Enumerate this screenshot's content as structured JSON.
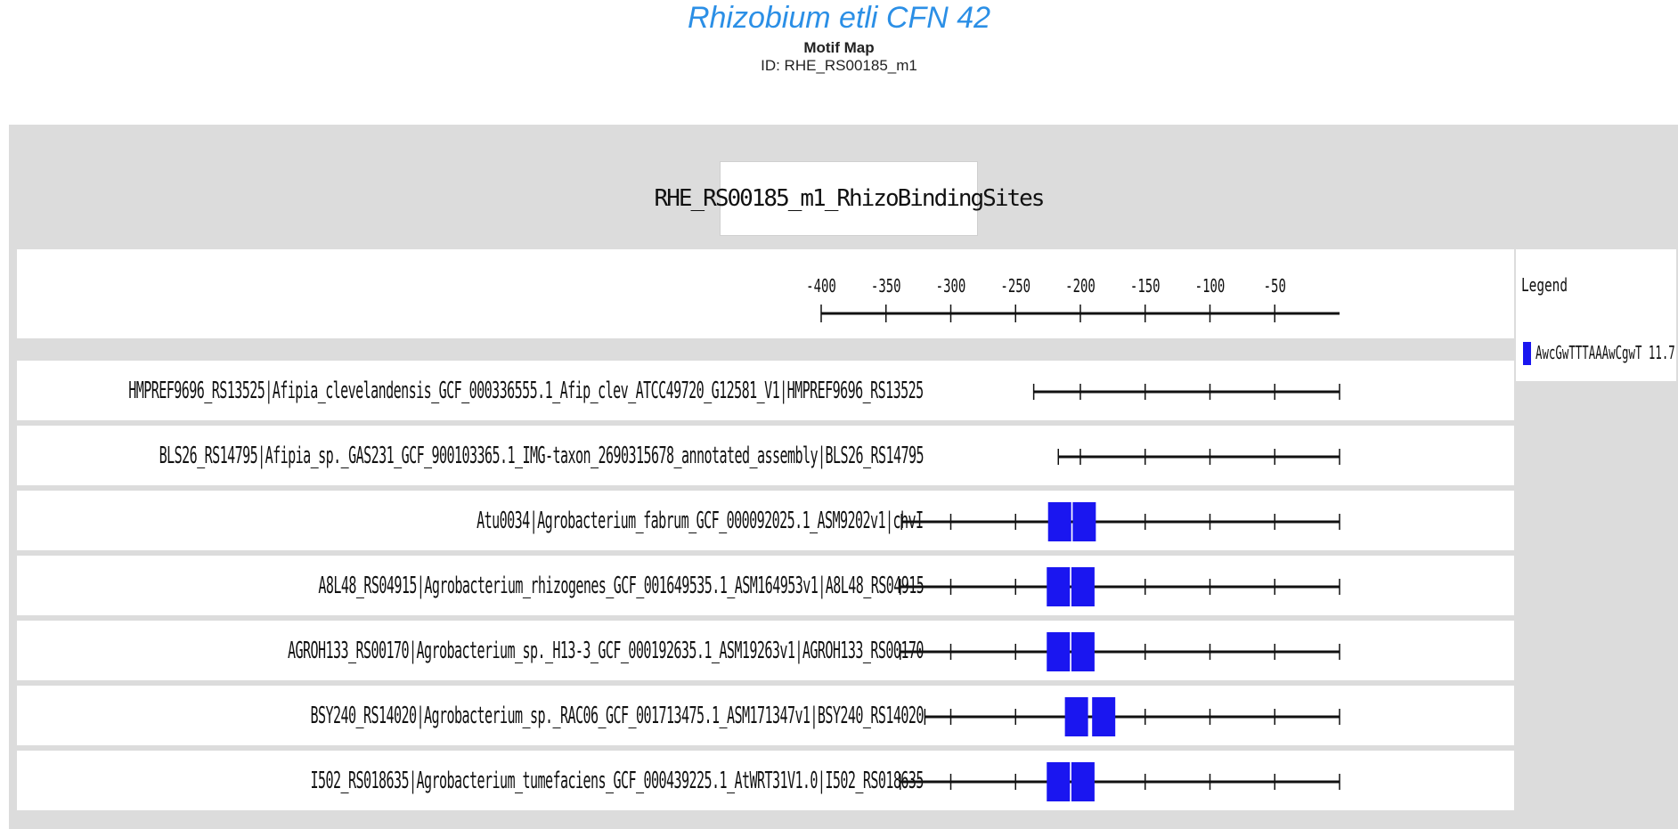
{
  "header": {
    "organism": "Rhizobium etli CFN 42",
    "subtitle": "Motif Map",
    "id_line": "ID: RHE_RS00185_m1"
  },
  "map": {
    "title": "RHE_RS00185_m1_RhizoBindingSites",
    "axis": {
      "ticks": [
        "-400",
        "-350",
        "-300",
        "-250",
        "-200",
        "-150",
        "-100",
        "-50"
      ],
      "tick_values": [
        -400,
        -350,
        -300,
        -250,
        -200,
        -150,
        -100,
        -50
      ],
      "range": [
        -400,
        0
      ]
    },
    "legend": {
      "title": "Legend",
      "entries": [
        {
          "label": "AwcGwTTTAAAwCgwT 11.7",
          "color": "#1a16f0"
        }
      ]
    },
    "motif_color": "#1a16f0",
    "rows": [
      {
        "label": "HMPREF9696_RS13525|Afipia_clevelandensis_GCF_000336555.1_Afip_clev_ATCC49720_G12581_V1|HMPREF9696_RS13525",
        "start": -236,
        "sites": []
      },
      {
        "label": "BLS26_RS14795|Afipia_sp._GAS231_GCF_900103365.1_IMG-taxon_2690315678_annotated_assembly|BLS26_RS14795",
        "start": -217,
        "sites": []
      },
      {
        "label": "Atu0034|Agrobacterium_fabrum_GCF_000092025.1_ASM9202v1|chvI",
        "start": -338,
        "sites": [
          -216,
          -197
        ]
      },
      {
        "label": "A8L48_RS04915|Agrobacterium_rhizogenes_GCF_001649535.1_ASM164953v1|A8L48_RS04915",
        "start": -339,
        "sites": [
          -217,
          -198
        ]
      },
      {
        "label": "AGROH133_RS00170|Agrobacterium_sp._H13-3_GCF_000192635.1_ASM19263v1|AGROH133_RS00170",
        "start": -339,
        "sites": [
          -217,
          -198
        ]
      },
      {
        "label": "BSY240_RS14020|Agrobacterium_sp._RAC06_GCF_001713475.1_ASM171347v1|BSY240_RS14020",
        "start": -320,
        "sites": [
          -203,
          -182
        ]
      },
      {
        "label": "I502_RS018635|Agrobacterium_tumefaciens_GCF_000439225.1_AtWRT31V1.0|I502_RS018635",
        "start": -339,
        "sites": [
          -217,
          -198
        ]
      }
    ]
  }
}
